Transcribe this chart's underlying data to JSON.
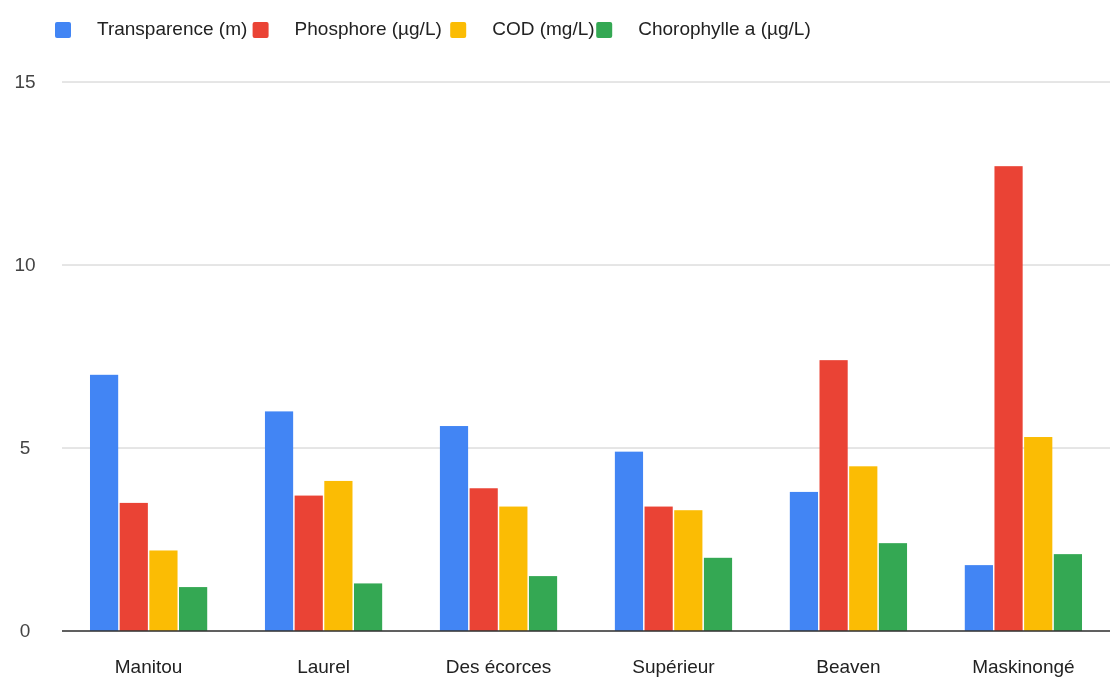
{
  "chart_data": {
    "type": "bar",
    "categories": [
      "Manitou",
      "Laurel",
      "Des écorces",
      "Supérieur",
      "Beaven",
      "Maskinongé"
    ],
    "series": [
      {
        "name": "Transparence (m)",
        "color": "#4285f4",
        "values": [
          7.0,
          6.0,
          5.6,
          4.9,
          3.8,
          1.8
        ]
      },
      {
        "name": "Phosphore (µg/L)",
        "color": "#ea4335",
        "values": [
          3.5,
          3.7,
          3.9,
          3.4,
          7.4,
          12.7
        ]
      },
      {
        "name": "COD (mg/L)",
        "color": "#fbbc04",
        "values": [
          2.2,
          4.1,
          3.4,
          3.3,
          4.5,
          5.3
        ]
      },
      {
        "name": "Chorophylle a  (µg/L)",
        "color": "#34a853",
        "values": [
          1.2,
          1.3,
          1.5,
          2.0,
          2.4,
          2.1
        ]
      }
    ],
    "ylim": [
      0,
      15
    ],
    "yticks": [
      0,
      5,
      10,
      15
    ],
    "grid": "y",
    "legend": "top left"
  }
}
